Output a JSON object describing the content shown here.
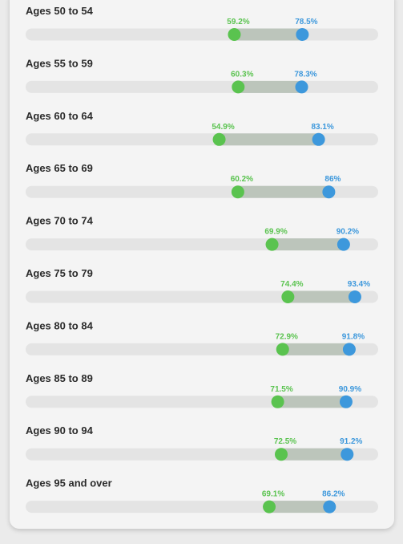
{
  "colors": {
    "low": "#5ac34f",
    "high": "#3d98dc",
    "track": "#e4e4e4",
    "range": "#bcc5bb",
    "label": "#2b2b2b"
  },
  "chart_data": {
    "type": "dumbbell",
    "xlim": [
      0,
      100
    ],
    "rows": [
      {
        "label": "Ages 50 to 54",
        "low": 59.2,
        "high": 78.5,
        "low_text": "59.2%",
        "high_text": "78.5%"
      },
      {
        "label": "Ages 55 to 59",
        "low": 60.3,
        "high": 78.3,
        "low_text": "60.3%",
        "high_text": "78.3%"
      },
      {
        "label": "Ages 60 to 64",
        "low": 54.9,
        "high": 83.1,
        "low_text": "54.9%",
        "high_text": "83.1%"
      },
      {
        "label": "Ages 65 to 69",
        "low": 60.2,
        "high": 86,
        "low_text": "60.2%",
        "high_text": "86%"
      },
      {
        "label": "Ages 70 to 74",
        "low": 69.9,
        "high": 90.2,
        "low_text": "69.9%",
        "high_text": "90.2%"
      },
      {
        "label": "Ages 75 to 79",
        "low": 74.4,
        "high": 93.4,
        "low_text": "74.4%",
        "high_text": "93.4%"
      },
      {
        "label": "Ages 80 to 84",
        "low": 72.9,
        "high": 91.8,
        "low_text": "72.9%",
        "high_text": "91.8%"
      },
      {
        "label": "Ages 85 to 89",
        "low": 71.5,
        "high": 90.9,
        "low_text": "71.5%",
        "high_text": "90.9%"
      },
      {
        "label": "Ages 90 to 94",
        "low": 72.5,
        "high": 91.2,
        "low_text": "72.5%",
        "high_text": "91.2%"
      },
      {
        "label": "Ages 95 and over",
        "low": 69.1,
        "high": 86.2,
        "low_text": "69.1%",
        "high_text": "86.2%"
      }
    ]
  }
}
